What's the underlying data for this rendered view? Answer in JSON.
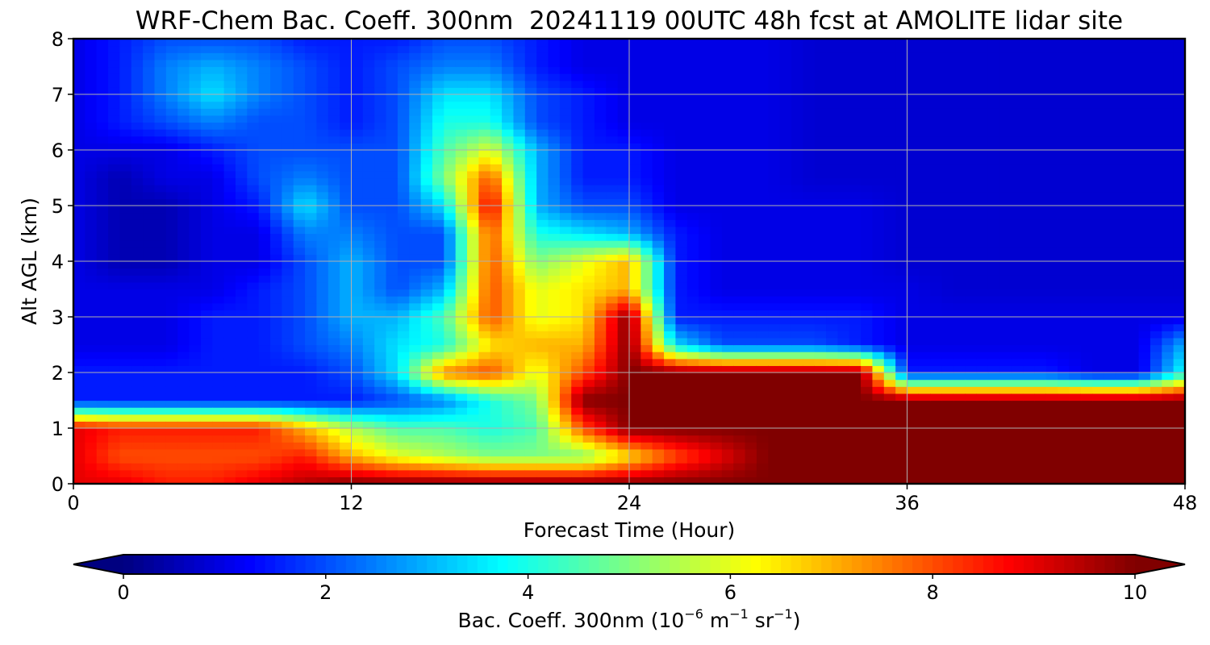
{
  "chart_data": {
    "type": "heatmap",
    "subtype": "filled-contour time-height cross section",
    "title": "WRF-Chem Bac. Coeff. 300nm  20241119 00UTC 48h fcst at AMOLITE lidar site",
    "xlabel": "Forecast Time (Hour)",
    "ylabel": "Alt AGL (km)",
    "xlim": [
      0,
      48
    ],
    "ylim": [
      0,
      8
    ],
    "x_ticks": [
      "0",
      "12",
      "24",
      "36",
      "48"
    ],
    "y_ticks": [
      "0",
      "1",
      "2",
      "3",
      "4",
      "5",
      "6",
      "7",
      "8"
    ],
    "grid": true,
    "colormap": "jet",
    "colorbar": {
      "orientation": "horizontal",
      "range": [
        0,
        10
      ],
      "extend": "both",
      "ticks": [
        "0",
        "2",
        "4",
        "6",
        "8",
        "10"
      ],
      "label_text": "Bac. Coeff. 300nm  (10",
      "label_exp1": "−6",
      "label_mid": " m",
      "label_exp2": "−1",
      "label_mid2": " sr",
      "label_exp3": "−1",
      "label_end": ")"
    },
    "grid_x_hours": [
      0,
      2,
      4,
      6,
      8,
      10,
      12,
      14,
      16,
      18,
      20,
      22,
      24,
      26,
      28,
      30,
      32,
      34,
      36,
      38,
      40,
      42,
      44,
      46,
      48
    ],
    "grid_y_km": [
      0,
      0.5,
      1,
      1.5,
      2,
      2.5,
      3,
      3.5,
      4,
      4.5,
      5,
      5.5,
      6,
      6.5,
      7,
      7.5,
      8
    ],
    "values_by_altitude": [
      [
        9,
        9,
        8.5,
        8.5,
        9,
        9.5,
        10,
        10,
        10,
        10,
        10,
        10,
        10,
        10,
        10,
        10,
        10,
        10,
        10,
        10,
        10,
        10,
        10,
        10,
        10
      ],
      [
        9,
        8,
        8,
        8,
        8,
        8.5,
        7,
        6,
        5.5,
        5,
        5,
        5,
        6.5,
        8,
        9,
        10,
        10,
        10,
        10,
        10,
        10,
        10,
        10,
        10,
        10
      ],
      [
        9,
        8.5,
        8.5,
        8.5,
        8.5,
        7,
        5.5,
        4.5,
        4.5,
        4,
        4.5,
        8,
        10,
        10,
        10,
        10,
        10,
        10,
        10,
        10,
        10,
        10,
        10,
        10,
        10
      ],
      [
        1.5,
        1.5,
        1.5,
        1.5,
        1.5,
        1.5,
        1.5,
        2,
        2.5,
        4,
        5,
        10,
        10,
        10,
        10,
        10,
        10,
        10,
        10,
        10,
        10,
        10,
        10,
        10,
        10
      ],
      [
        1.5,
        1.5,
        1.5,
        1.5,
        1.5,
        1.5,
        2,
        3.5,
        7.5,
        8,
        6,
        8,
        10,
        10,
        10,
        10,
        10,
        10,
        1.5,
        1.5,
        1.5,
        1.5,
        1,
        1,
        4
      ],
      [
        1,
        1,
        1,
        1.5,
        1.5,
        2,
        2.5,
        3.5,
        4,
        6.5,
        7,
        7,
        10,
        3.5,
        2,
        2,
        2,
        1.5,
        1,
        1,
        1,
        1,
        1,
        1,
        3
      ],
      [
        1,
        1,
        1,
        1.5,
        1.5,
        2,
        3,
        3,
        4.5,
        8,
        6,
        6.5,
        10,
        1.5,
        1.5,
        1.5,
        1.5,
        1.5,
        1,
        1,
        1,
        1,
        1,
        1,
        1
      ],
      [
        1,
        1,
        1,
        1,
        1.5,
        2,
        3,
        2,
        3,
        8,
        6,
        6.5,
        7,
        1.5,
        1,
        1,
        1,
        1,
        1,
        0.8,
        0.8,
        0.8,
        0.8,
        0.8,
        0.8
      ],
      [
        1,
        0.5,
        0.5,
        1,
        1,
        2,
        3,
        2,
        2,
        8,
        5,
        6,
        7,
        1.5,
        1,
        1,
        1,
        1,
        0.8,
        0.8,
        0.8,
        0.8,
        0.8,
        0.8,
        0.8
      ],
      [
        1,
        0.5,
        0.5,
        1,
        1,
        2.5,
        2.5,
        2,
        2,
        8,
        4,
        3.5,
        3,
        1.5,
        1,
        1,
        1,
        1,
        0.8,
        0.8,
        0.8,
        0.8,
        0.8,
        0.8,
        0.8
      ],
      [
        1,
        0.5,
        0.5,
        1,
        1.5,
        3.5,
        2,
        2,
        3.5,
        9,
        3,
        2,
        2,
        1,
        1,
        1,
        1,
        1,
        0.8,
        0.8,
        0.8,
        0.8,
        0.8,
        0.8,
        0.8
      ],
      [
        1,
        0.5,
        1,
        1,
        2,
        2.5,
        2,
        2,
        5,
        8,
        3,
        1.5,
        1.5,
        1,
        1,
        1,
        0.8,
        0.8,
        0.8,
        0.8,
        0.8,
        0.8,
        0.8,
        0.8,
        0.8
      ],
      [
        1,
        1,
        1,
        1.5,
        2,
        2,
        2,
        2,
        4.5,
        6,
        3,
        1.5,
        1.5,
        1,
        1,
        1,
        0.8,
        0.8,
        0.8,
        0.8,
        0.8,
        0.8,
        0.8,
        0.8,
        0.8
      ],
      [
        1,
        1.5,
        2,
        2.5,
        2,
        2,
        1.5,
        2,
        4,
        4,
        2,
        1.5,
        1,
        1,
        1,
        1,
        0.8,
        0.8,
        0.8,
        0.8,
        0.8,
        0.8,
        0.8,
        0.8,
        0.8
      ],
      [
        1,
        1.5,
        2.5,
        3.5,
        2.5,
        2,
        1.5,
        2,
        3.5,
        3.5,
        2,
        1.5,
        1,
        1,
        1,
        1,
        0.8,
        0.8,
        0.8,
        0.8,
        0.8,
        0.8,
        0.8,
        0.8,
        0.8
      ],
      [
        1,
        1.5,
        2.5,
        3,
        2.5,
        2,
        1.5,
        2,
        2.5,
        2.5,
        1.5,
        1,
        1,
        1,
        1,
        1,
        0.8,
        0.8,
        0.8,
        0.8,
        0.8,
        0.8,
        0.8,
        0.8,
        0.8
      ],
      [
        1,
        1.5,
        2,
        2,
        2,
        1.5,
        1.5,
        1.5,
        2,
        2,
        1.5,
        1,
        1,
        1,
        1,
        1,
        0.8,
        0.8,
        0.8,
        0.8,
        0.8,
        0.8,
        0.8,
        0.8,
        0.8
      ]
    ]
  }
}
